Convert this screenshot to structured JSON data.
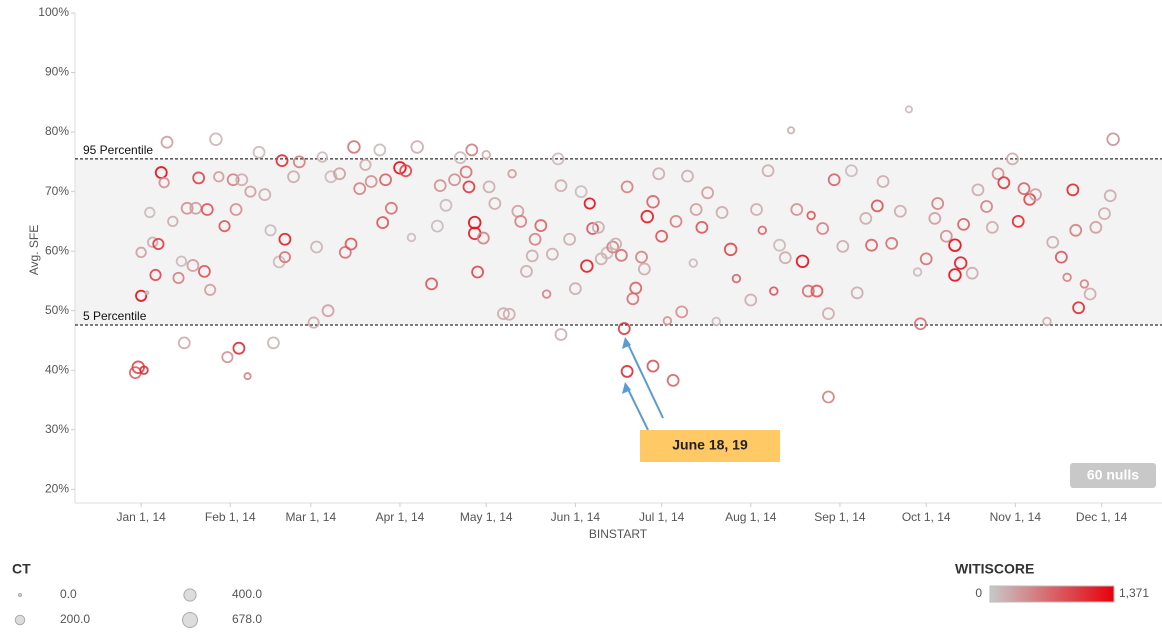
{
  "chart_data": {
    "type": "scatter",
    "x_label": "BINSTART",
    "y_label": "Avg. SFE",
    "xlim": [
      "2013-12-09",
      "2014-12-22"
    ],
    "xticks": [
      {
        "value": "2014-01-01",
        "label": "Jan 1, 14"
      },
      {
        "value": "2014-02-01",
        "label": "Feb 1, 14"
      },
      {
        "value": "2014-03-01",
        "label": "Mar 1, 14"
      },
      {
        "value": "2014-04-01",
        "label": "Apr 1, 14"
      },
      {
        "value": "2014-05-01",
        "label": "May 1, 14"
      },
      {
        "value": "2014-06-01",
        "label": "Jun 1, 14"
      },
      {
        "value": "2014-07-01",
        "label": "Jul 1, 14"
      },
      {
        "value": "2014-08-01",
        "label": "Aug 1, 14"
      },
      {
        "value": "2014-09-01",
        "label": "Sep 1, 14"
      },
      {
        "value": "2014-10-01",
        "label": "Oct 1, 14"
      },
      {
        "value": "2014-11-01",
        "label": "Nov 1, 14"
      },
      {
        "value": "2014-12-01",
        "label": "Dec 1, 14"
      }
    ],
    "ylim": [
      17.7,
      100
    ],
    "yticks": [
      {
        "value": 20,
        "label": "20%"
      },
      {
        "value": 30,
        "label": "30%"
      },
      {
        "value": 40,
        "label": "40%"
      },
      {
        "value": 50,
        "label": "50%"
      },
      {
        "value": 60,
        "label": "60%"
      },
      {
        "value": 70,
        "label": "70%"
      },
      {
        "value": 80,
        "label": "80%"
      },
      {
        "value": 90,
        "label": "90%"
      },
      {
        "value": 100,
        "label": "100%"
      }
    ],
    "grid": false,
    "reference_lines": [
      {
        "label": "95 Percentile",
        "value": 75.5
      },
      {
        "label": "5 Percentile",
        "value": 47.6
      }
    ],
    "annotation": "June 18, 19",
    "nulls_badge": "60 nulls",
    "size_legend": {
      "title": "CT",
      "items": [
        {
          "value": 0,
          "label": "0.0"
        },
        {
          "value": 200,
          "label": "200.0"
        },
        {
          "value": 400,
          "label": "400.0"
        },
        {
          "value": 678,
          "label": "678.0"
        }
      ]
    },
    "color_legend": {
      "title": "WITISCORE",
      "min": 0,
      "max": {
        "value": 1371,
        "label": "1,371"
      },
      "low_color": "#c8c8c8",
      "high_color": "#e8000b"
    },
    "x": [
      "2013-12-30",
      "2013-12-31",
      "2014-01-02",
      "2014-01-01",
      "2014-01-01",
      "2014-01-03",
      "2014-01-04",
      "2014-01-05",
      "2014-01-06",
      "2014-01-07",
      "2014-01-08",
      "2014-01-09",
      "2014-01-10",
      "2014-01-12",
      "2014-01-14",
      "2014-01-15",
      "2014-01-16",
      "2014-01-17",
      "2014-01-19",
      "2014-01-20",
      "2014-01-21",
      "2014-01-23",
      "2014-01-24",
      "2014-01-25",
      "2014-01-27",
      "2014-01-28",
      "2014-01-30",
      "2014-01-31",
      "2014-02-02",
      "2014-02-03",
      "2014-02-04",
      "2014-02-05",
      "2014-02-07",
      "2014-02-08",
      "2014-02-11",
      "2014-02-13",
      "2014-02-15",
      "2014-02-16",
      "2014-02-18",
      "2014-02-19",
      "2014-02-20",
      "2014-02-20",
      "2014-02-23",
      "2014-02-25",
      "2014-03-02",
      "2014-03-03",
      "2014-03-05",
      "2014-03-07",
      "2014-03-08",
      "2014-03-11",
      "2014-03-13",
      "2014-03-15",
      "2014-03-16",
      "2014-03-18",
      "2014-03-20",
      "2014-03-22",
      "2014-03-25",
      "2014-03-26",
      "2014-03-27",
      "2014-03-29",
      "2014-04-01",
      "2014-04-03",
      "2014-04-05",
      "2014-04-07",
      "2014-04-12",
      "2014-04-14",
      "2014-04-15",
      "2014-04-17",
      "2014-04-20",
      "2014-04-22",
      "2014-04-24",
      "2014-04-25",
      "2014-04-26",
      "2014-04-27",
      "2014-04-27",
      "2014-04-28",
      "2014-04-30",
      "2014-05-01",
      "2014-05-02",
      "2014-05-04",
      "2014-05-07",
      "2014-05-09",
      "2014-05-10",
      "2014-05-12",
      "2014-05-13",
      "2014-05-15",
      "2014-05-17",
      "2014-05-18",
      "2014-05-20",
      "2014-05-22",
      "2014-05-24",
      "2014-05-26",
      "2014-05-27",
      "2014-05-27",
      "2014-05-30",
      "2014-06-01",
      "2014-06-03",
      "2014-06-05",
      "2014-06-06",
      "2014-06-07",
      "2014-06-09",
      "2014-06-10",
      "2014-06-12",
      "2014-06-14",
      "2014-06-15",
      "2014-06-17",
      "2014-06-18",
      "2014-06-19",
      "2014-06-19",
      "2014-06-21",
      "2014-06-22",
      "2014-06-24",
      "2014-06-25",
      "2014-06-26",
      "2014-06-28",
      "2014-06-28",
      "2014-06-30",
      "2014-07-01",
      "2014-07-03",
      "2014-07-05",
      "2014-07-06",
      "2014-07-08",
      "2014-07-10",
      "2014-07-12",
      "2014-07-13",
      "2014-07-15",
      "2014-07-17",
      "2014-07-20",
      "2014-07-22",
      "2014-07-25",
      "2014-07-27",
      "2014-08-01",
      "2014-08-03",
      "2014-08-05",
      "2014-08-07",
      "2014-08-09",
      "2014-08-11",
      "2014-08-13",
      "2014-08-15",
      "2014-08-17",
      "2014-08-19",
      "2014-08-21",
      "2014-08-22",
      "2014-08-24",
      "2014-08-26",
      "2014-08-28",
      "2014-08-28",
      "2014-08-30",
      "2014-09-02",
      "2014-09-05",
      "2014-09-07",
      "2014-09-10",
      "2014-09-12",
      "2014-09-14",
      "2014-09-16",
      "2014-09-19",
      "2014-09-22",
      "2014-09-25",
      "2014-09-28",
      "2014-09-29",
      "2014-10-01",
      "2014-10-04",
      "2014-10-05",
      "2014-10-08",
      "2014-10-11",
      "2014-10-11",
      "2014-10-13",
      "2014-10-14",
      "2014-10-17",
      "2014-10-19",
      "2014-10-22",
      "2014-10-24",
      "2014-10-26",
      "2014-10-28",
      "2014-10-31",
      "2014-11-02",
      "2014-11-04",
      "2014-11-06",
      "2014-11-08",
      "2014-11-12",
      "2014-11-14",
      "2014-11-17",
      "2014-11-19",
      "2014-11-21",
      "2014-11-22",
      "2014-11-23",
      "2014-11-25",
      "2014-11-27",
      "2014-11-29",
      "2014-12-02",
      "2014-12-04",
      "2014-12-05"
    ],
    "values": [
      39.6,
      40.5,
      40.0,
      52.5,
      59.8,
      53.0,
      66.5,
      61.5,
      56.0,
      61.2,
      73.2,
      71.5,
      78.3,
      65.0,
      55.5,
      58.3,
      44.6,
      67.2,
      57.6,
      67.2,
      72.3,
      56.6,
      67.0,
      53.5,
      78.8,
      72.5,
      64.2,
      42.2,
      72.0,
      67.0,
      43.7,
      72.0,
      39.0,
      70.0,
      76.6,
      69.5,
      63.5,
      44.6,
      58.2,
      75.2,
      62.0,
      59.0,
      72.5,
      75.0,
      48.0,
      60.7,
      75.8,
      50.0,
      72.5,
      73.0,
      59.8,
      61.2,
      77.5,
      70.5,
      74.5,
      71.7,
      77.0,
      64.8,
      72.0,
      67.2,
      74.0,
      73.5,
      62.3,
      77.5,
      54.5,
      64.2,
      71.0,
      67.7,
      72.0,
      75.7,
      73.3,
      70.8,
      77.0,
      63.0,
      64.8,
      56.5,
      62.2,
      76.2,
      70.8,
      68.0,
      49.5,
      49.4,
      73.0,
      66.7,
      65.0,
      56.6,
      59.2,
      62.0,
      64.3,
      52.8,
      59.5,
      75.5,
      71.0,
      46.0,
      62.0,
      53.7,
      70.0,
      57.5,
      68.0,
      63.8,
      64.0,
      58.7,
      59.7,
      60.7,
      61.2,
      59.3,
      47.0,
      39.8,
      70.8,
      52.0,
      53.8,
      59.0,
      57.0,
      65.8,
      40.7,
      68.3,
      73.0,
      62.5,
      48.3,
      38.3,
      65.0,
      49.8,
      72.6,
      58.0,
      67.0,
      64.0,
      69.8,
      48.2,
      66.5,
      60.3,
      55.4,
      51.8,
      67.0,
      63.5,
      73.5,
      53.3,
      61.0,
      58.9,
      80.3,
      67.0,
      58.3,
      53.3,
      66.0,
      53.3,
      63.8,
      49.5,
      35.5,
      72.0,
      60.8,
      73.5,
      53.0,
      65.5,
      61.0,
      67.6,
      71.7,
      61.3,
      66.7,
      83.8,
      56.5,
      47.8,
      58.7,
      65.5,
      68.0,
      62.5,
      61.0,
      56.0,
      58.0,
      64.5,
      56.3,
      70.3,
      67.5,
      64.0,
      73.0,
      71.5,
      75.5,
      65.0,
      70.5,
      68.7,
      69.5,
      48.2,
      61.5,
      59.0,
      55.6,
      70.3,
      63.5,
      50.5,
      54.5,
      52.8,
      64.0,
      66.3,
      69.3,
      78.8
    ],
    "ct": [
      300,
      350,
      100,
      250,
      200,
      0,
      200,
      200,
      250,
      250,
      300,
      200,
      300,
      200,
      250,
      200,
      300,
      300,
      300,
      300,
      300,
      300,
      300,
      250,
      350,
      200,
      250,
      250,
      300,
      300,
      300,
      300,
      50,
      250,
      300,
      300,
      250,
      300,
      300,
      300,
      300,
      250,
      300,
      300,
      250,
      300,
      200,
      300,
      300,
      300,
      300,
      300,
      350,
      300,
      250,
      300,
      300,
      300,
      300,
      300,
      350,
      300,
      100,
      350,
      300,
      300,
      300,
      300,
      300,
      300,
      300,
      300,
      300,
      350,
      350,
      300,
      300,
      100,
      300,
      300,
      300,
      300,
      100,
      300,
      300,
      300,
      300,
      300,
      300,
      100,
      300,
      300,
      300,
      300,
      300,
      300,
      300,
      350,
      250,
      300,
      300,
      300,
      300,
      300,
      300,
      300,
      300,
      300,
      300,
      300,
      300,
      300,
      300,
      350,
      300,
      350,
      300,
      300,
      100,
      300,
      300,
      300,
      300,
      100,
      300,
      300,
      300,
      100,
      300,
      350,
      100,
      300,
      300,
      100,
      300,
      100,
      300,
      300,
      50,
      300,
      350,
      300,
      100,
      300,
      300,
      300,
      300,
      300,
      300,
      300,
      300,
      300,
      300,
      300,
      300,
      300,
      300,
      50,
      100,
      300,
      300,
      300,
      300,
      300,
      350,
      350,
      350,
      300,
      300,
      300,
      300,
      300,
      300,
      300,
      300,
      300,
      300,
      300,
      300,
      100,
      300,
      300,
      100,
      300,
      300,
      300,
      100,
      300,
      300,
      300,
      300,
      350
    ],
    "witiscore": [
      700,
      900,
      1100,
      1300,
      300,
      200,
      100,
      200,
      900,
      1000,
      1300,
      400,
      300,
      200,
      500,
      100,
      200,
      400,
      300,
      300,
      900,
      800,
      800,
      300,
      150,
      300,
      800,
      400,
      500,
      400,
      1100,
      200,
      500,
      300,
      100,
      200,
      100,
      150,
      100,
      1100,
      1200,
      600,
      200,
      500,
      200,
      150,
      100,
      300,
      100,
      300,
      600,
      800,
      600,
      500,
      200,
      400,
      100,
      800,
      700,
      600,
      1300,
      900,
      100,
      200,
      800,
      100,
      400,
      100,
      400,
      100,
      600,
      1000,
      500,
      1200,
      1300,
      900,
      500,
      200,
      200,
      200,
      200,
      200,
      300,
      300,
      500,
      200,
      200,
      500,
      700,
      500,
      200,
      100,
      200,
      200,
      200,
      200,
      100,
      1200,
      1300,
      800,
      200,
      200,
      100,
      500,
      200,
      600,
      1000,
      1100,
      500,
      600,
      700,
      500,
      200,
      1200,
      800,
      700,
      200,
      800,
      400,
      700,
      500,
      400,
      200,
      100,
      300,
      800,
      300,
      100,
      200,
      900,
      700,
      200,
      200,
      700,
      200,
      800,
      100,
      200,
      200,
      400,
      1300,
      600,
      800,
      800,
      500,
      200,
      500,
      700,
      200,
      100,
      200,
      200,
      700,
      800,
      200,
      600,
      200,
      100,
      100,
      600,
      600,
      300,
      500,
      400,
      1300,
      1300,
      1200,
      700,
      200,
      200,
      500,
      200,
      400,
      1000,
      200,
      1100,
      700,
      900,
      300,
      200,
      200,
      800,
      500,
      1100,
      500,
      1100,
      500,
      200,
      300,
      200,
      200,
      400
    ]
  }
}
